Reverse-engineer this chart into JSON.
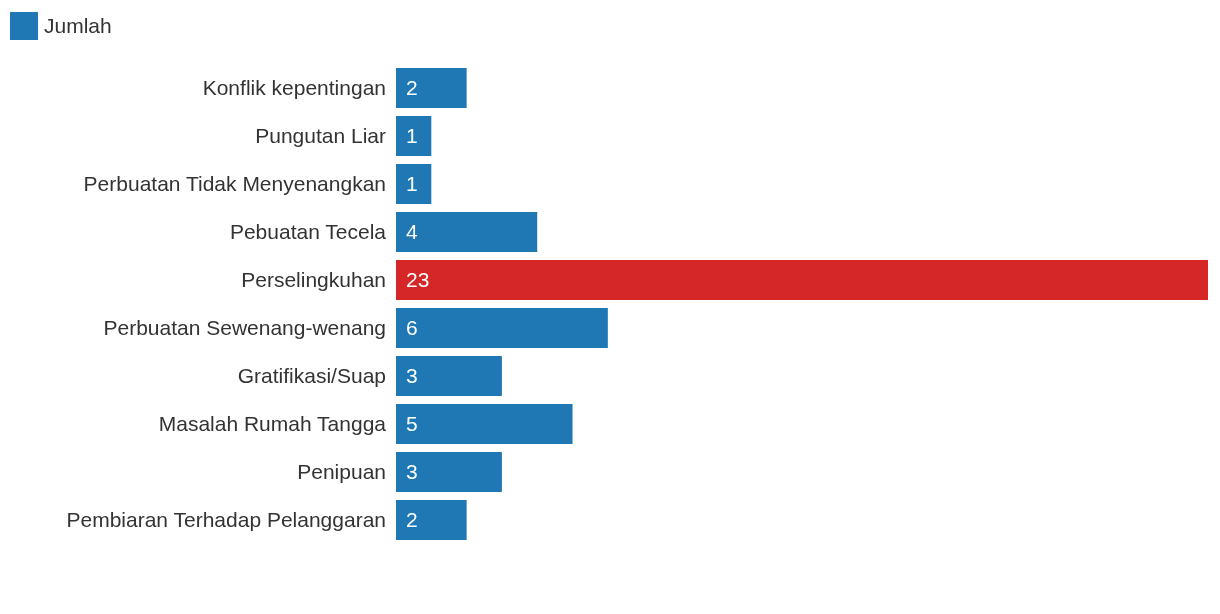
{
  "chart_data": {
    "type": "bar",
    "orientation": "horizontal",
    "categories": [
      "Konflik kepentingan",
      "Pungutan Liar",
      "Perbuatan Tidak Menyenangkan",
      "Pebuatan Tecela",
      "Perselingkuhan",
      "Perbuatan Sewenang-wenang",
      "Gratifikasi/Suap",
      "Masalah Rumah Tangga",
      "Penipuan",
      "Pembiaran Terhadap Pelanggaran"
    ],
    "series": [
      {
        "name": "Jumlah",
        "color": "#1f77b4",
        "colors": [
          "#1f77b4",
          "#1f77b4",
          "#1f77b4",
          "#1f77b4",
          "#d62728",
          "#1f77b4",
          "#1f77b4",
          "#1f77b4",
          "#1f77b4",
          "#1f77b4"
        ],
        "values": [
          2,
          1,
          1,
          4,
          23,
          6,
          3,
          5,
          3,
          2
        ]
      }
    ],
    "data_labels": true,
    "legend": "top left",
    "grid": false
  }
}
